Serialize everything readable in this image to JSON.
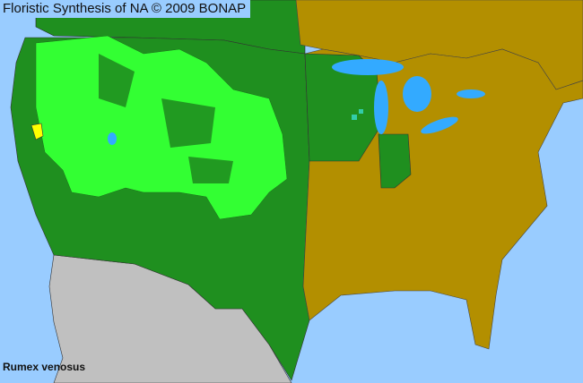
{
  "title": "Floristic Synthesis of NA © 2009 BONAP",
  "species": "Rumex venosus",
  "colors": {
    "water": "#99ccff",
    "present_state": "#1f8f1f",
    "present_county": "#33ff33",
    "absent_state": "#b38f00",
    "non_native_or_rare": "#ffff00",
    "outside_region": "#c0c0c0",
    "other_county": "#33ccaa"
  }
}
